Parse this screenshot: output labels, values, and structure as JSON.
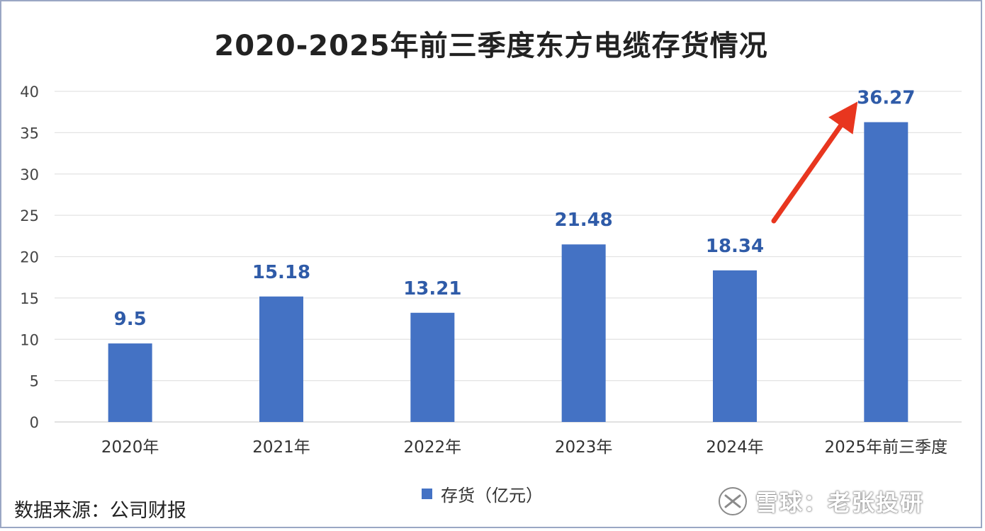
{
  "chart_data": {
    "type": "bar",
    "title": "2020-2025年前三季度东方电缆存货情况",
    "categories": [
      "2020年",
      "2021年",
      "2022年",
      "2023年",
      "2024年",
      "2025年前三季度"
    ],
    "series": [
      {
        "name": "存货（亿元）",
        "values": [
          9.5,
          15.18,
          13.21,
          21.48,
          18.34,
          36.27
        ]
      }
    ],
    "data_labels": [
      "9.5",
      "15.18",
      "13.21",
      "21.48",
      "18.34",
      "36.27"
    ],
    "ylim": [
      0,
      40
    ],
    "yticks": [
      0,
      5,
      10,
      15,
      20,
      25,
      30,
      35,
      40
    ],
    "grid": true,
    "legend_position": "bottom",
    "colors": {
      "bar": "#4472c4",
      "label": "#2f5ba8",
      "arrow": "#e8361f",
      "grid": "#e3e3e3"
    },
    "annotation": "arrow-pointing-to-2025-bar"
  },
  "footer": {
    "source": "数据来源：公司财报",
    "watermark": "雪球：老张投研",
    "watermark_icon": "snowball-logo-icon"
  }
}
